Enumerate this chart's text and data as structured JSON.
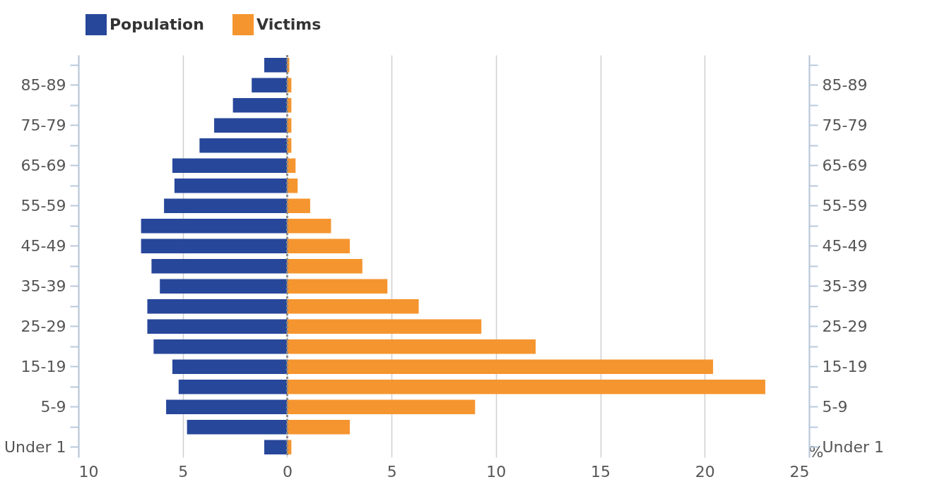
{
  "chart_data": {
    "type": "bar",
    "orientation": "horizontal",
    "xlabel": "%",
    "categories": [
      null,
      "85-89",
      null,
      "75-79",
      null,
      "65-69",
      null,
      "55-59",
      null,
      "45-49",
      null,
      "35-39",
      null,
      "25-29",
      null,
      "15-19",
      null,
      "5-9",
      null,
      "Under 1"
    ],
    "series": [
      {
        "name": "Population",
        "color": "#27479a",
        "values": [
          -1.1,
          -1.7,
          -2.6,
          -3.5,
          -4.2,
          -5.5,
          -5.4,
          -5.9,
          -7.0,
          -7.0,
          -6.5,
          -6.1,
          -6.7,
          -6.7,
          -6.4,
          -5.5,
          -5.2,
          -5.8,
          -4.8,
          -1.1
        ]
      },
      {
        "name": "Victims",
        "color": "#f5952f",
        "values": [
          0.1,
          0.2,
          0.2,
          0.2,
          0.2,
          0.4,
          0.5,
          1.1,
          2.1,
          3.0,
          3.6,
          4.8,
          6.3,
          9.3,
          11.9,
          20.4,
          22.9,
          9.0,
          3.0,
          0.2
        ]
      }
    ],
    "xlim": [
      -10,
      25
    ],
    "xticks": [
      {
        "value": -10,
        "label": "10"
      },
      {
        "value": -5,
        "label": "5"
      },
      0,
      5,
      10,
      15,
      20,
      25
    ],
    "ref_lines": [
      {
        "axis": "x",
        "value": 0,
        "color": "#888888",
        "line_style": "dotted"
      }
    ],
    "grid": "x",
    "legend": "top",
    "stacked": true
  }
}
